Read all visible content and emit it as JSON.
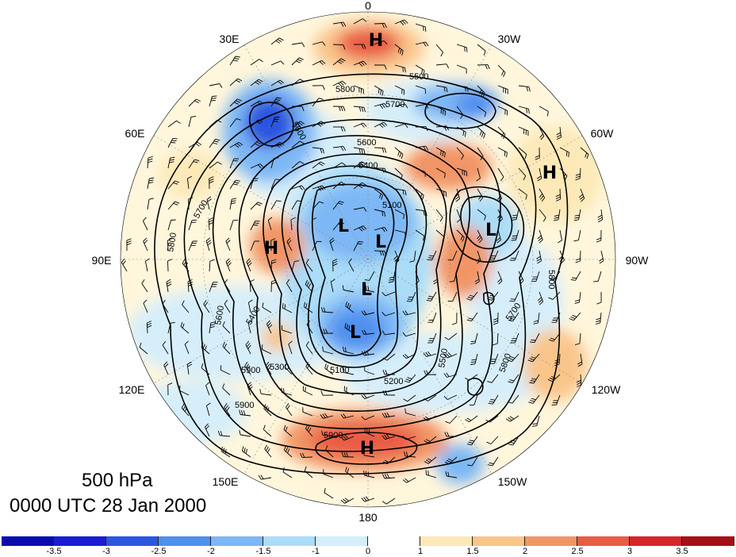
{
  "title": {
    "level": "500 hPa",
    "time": "0000 UTC 28 Jan 2000"
  },
  "longitude_labels": [
    "0",
    "30W",
    "60W",
    "90W",
    "120W",
    "150W",
    "180",
    "150E",
    "120E",
    "90E",
    "60E",
    "30E"
  ],
  "contour_labels": [
    "5800",
    "5800",
    "5700",
    "5700",
    "5600",
    "5500",
    "5400",
    "5400",
    "5100",
    "5100",
    "5200",
    "5300",
    "5500",
    "5600",
    "5600",
    "5700",
    "5800",
    "5800",
    "5900",
    "5900",
    "5900"
  ],
  "pressure_centers": {
    "highs": [
      "H",
      "H",
      "H",
      "H"
    ],
    "lows": [
      "L",
      "L",
      "L",
      "L",
      "L"
    ]
  },
  "colorbar": {
    "ticks": [
      "-3.5",
      "-3",
      "-2.5",
      "-2",
      "-1.5",
      "-1",
      "0",
      "1",
      "1.5",
      "2",
      "2.5",
      "3",
      "3.5"
    ],
    "colors": [
      "#1b1bd3",
      "#2c55e0",
      "#4f8ff0",
      "#7db7f5",
      "#abdcf8",
      "#d4eefa",
      "#ffffff",
      "#fde9b8",
      "#f9c58a",
      "#f29566",
      "#ea5b45",
      "#d4252b",
      "#a50f15"
    ]
  }
}
